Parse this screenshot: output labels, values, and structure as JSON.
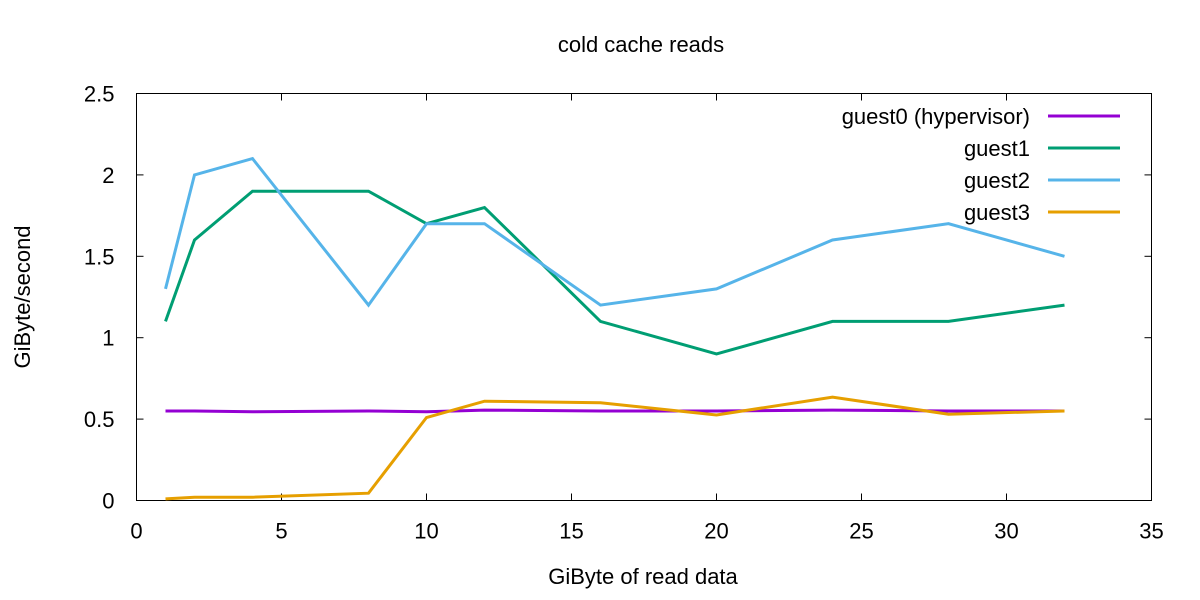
{
  "chart_data": {
    "type": "line",
    "title": "cold cache reads",
    "xlabel": "GiByte of read data",
    "ylabel": "GiByte/second",
    "xlim": [
      0,
      35
    ],
    "ylim": [
      0,
      2.5
    ],
    "xticks": [
      0,
      5,
      10,
      15,
      20,
      25,
      30,
      35
    ],
    "yticks": [
      0,
      0.5,
      1,
      1.5,
      2,
      2.5
    ],
    "xtick_labels": [
      "0",
      "5",
      "10",
      "15",
      "20",
      "25",
      "30",
      "35"
    ],
    "ytick_labels": [
      "0",
      "0.5",
      "1",
      "1.5",
      "2",
      "2.5"
    ],
    "grid": false,
    "legend_position": "top-right",
    "series": [
      {
        "name": "guest0 (hypervisor)",
        "color": "#9400d3",
        "x": [
          1,
          2,
          4,
          8,
          10,
          12,
          16,
          20,
          24,
          28,
          32
        ],
        "y": [
          0.55,
          0.55,
          0.545,
          0.55,
          0.545,
          0.555,
          0.55,
          0.55,
          0.555,
          0.55,
          0.55
        ]
      },
      {
        "name": "guest1",
        "color": "#009e73",
        "x": [
          1,
          2,
          4,
          8,
          10,
          12,
          16,
          20,
          24,
          28,
          32
        ],
        "y": [
          1.1,
          1.6,
          1.9,
          1.9,
          1.7,
          1.8,
          1.1,
          0.9,
          1.1,
          1.1,
          1.2
        ]
      },
      {
        "name": "guest2",
        "color": "#56b4e9",
        "x": [
          1,
          2,
          4,
          8,
          10,
          12,
          16,
          20,
          24,
          28,
          32
        ],
        "y": [
          1.3,
          2.0,
          2.1,
          1.2,
          1.7,
          1.7,
          1.2,
          1.3,
          1.6,
          1.7,
          1.5
        ]
      },
      {
        "name": "guest3",
        "color": "#e69f00",
        "x": [
          1,
          2,
          4,
          8,
          10,
          12,
          16,
          20,
          24,
          28,
          32
        ],
        "y": [
          0.01,
          0.02,
          0.02,
          0.045,
          0.51,
          0.61,
          0.6,
          0.525,
          0.635,
          0.53,
          0.55
        ]
      }
    ]
  }
}
